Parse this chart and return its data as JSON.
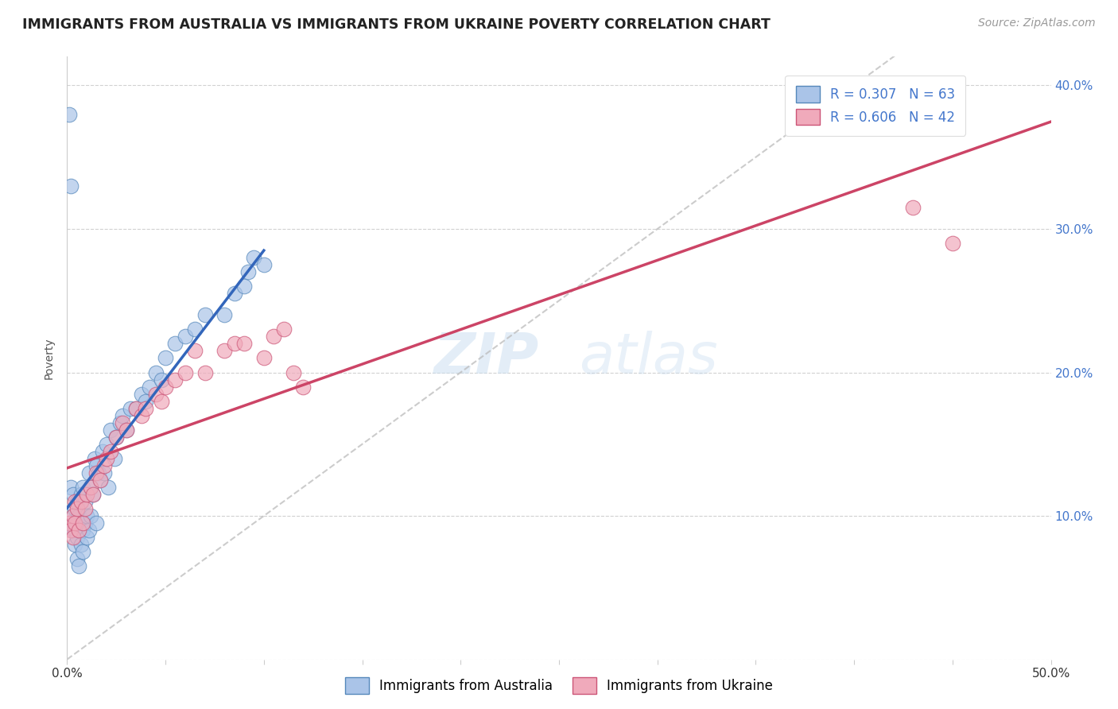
{
  "title": "IMMIGRANTS FROM AUSTRALIA VS IMMIGRANTS FROM UKRAINE POVERTY CORRELATION CHART",
  "source": "Source: ZipAtlas.com",
  "ylabel": "Poverty",
  "xlim": [
    0.0,
    0.5
  ],
  "ylim": [
    0.0,
    0.42
  ],
  "australia_color": "#aac4e8",
  "ukraine_color": "#f0aabb",
  "australia_edge": "#5588bb",
  "ukraine_edge": "#cc5577",
  "regression_australia_color": "#3366bb",
  "regression_ukraine_color": "#cc4466",
  "diagonal_color": "#bbbbbb",
  "R_australia": 0.307,
  "N_australia": 63,
  "R_ukraine": 0.606,
  "N_ukraine": 42,
  "legend_label_australia": "Immigrants from Australia",
  "legend_label_ukraine": "Immigrants from Ukraine",
  "watermark_zip": "ZIP",
  "watermark_atlas": "atlas",
  "background_color": "#ffffff",
  "grid_color": "#cccccc",
  "title_color": "#222222",
  "axis_tick_color": "#4477cc",
  "aus_x": [
    0.001,
    0.002,
    0.002,
    0.003,
    0.003,
    0.003,
    0.004,
    0.004,
    0.004,
    0.005,
    0.005,
    0.005,
    0.005,
    0.006,
    0.006,
    0.006,
    0.007,
    0.007,
    0.008,
    0.008,
    0.008,
    0.009,
    0.009,
    0.01,
    0.01,
    0.011,
    0.011,
    0.012,
    0.012,
    0.013,
    0.014,
    0.015,
    0.015,
    0.016,
    0.017,
    0.018,
    0.019,
    0.02,
    0.021,
    0.022,
    0.024,
    0.025,
    0.027,
    0.028,
    0.03,
    0.032,
    0.035,
    0.038,
    0.04,
    0.042,
    0.045,
    0.048,
    0.05,
    0.055,
    0.06,
    0.065,
    0.07,
    0.08,
    0.085,
    0.09,
    0.092,
    0.095,
    0.1
  ],
  "aus_y": [
    0.38,
    0.33,
    0.12,
    0.09,
    0.1,
    0.115,
    0.105,
    0.08,
    0.09,
    0.11,
    0.095,
    0.085,
    0.07,
    0.1,
    0.09,
    0.065,
    0.115,
    0.08,
    0.12,
    0.09,
    0.075,
    0.11,
    0.095,
    0.1,
    0.085,
    0.13,
    0.09,
    0.12,
    0.1,
    0.115,
    0.14,
    0.135,
    0.095,
    0.13,
    0.125,
    0.145,
    0.13,
    0.15,
    0.12,
    0.16,
    0.14,
    0.155,
    0.165,
    0.17,
    0.16,
    0.175,
    0.175,
    0.185,
    0.18,
    0.19,
    0.2,
    0.195,
    0.21,
    0.22,
    0.225,
    0.23,
    0.24,
    0.24,
    0.255,
    0.26,
    0.27,
    0.28,
    0.275
  ],
  "ukr_x": [
    0.001,
    0.002,
    0.003,
    0.003,
    0.004,
    0.004,
    0.005,
    0.006,
    0.007,
    0.008,
    0.009,
    0.01,
    0.012,
    0.013,
    0.015,
    0.017,
    0.019,
    0.02,
    0.022,
    0.025,
    0.028,
    0.03,
    0.035,
    0.038,
    0.04,
    0.045,
    0.048,
    0.05,
    0.055,
    0.06,
    0.065,
    0.07,
    0.08,
    0.085,
    0.09,
    0.1,
    0.105,
    0.11,
    0.115,
    0.12,
    0.43,
    0.45
  ],
  "ukr_y": [
    0.095,
    0.09,
    0.1,
    0.085,
    0.11,
    0.095,
    0.105,
    0.09,
    0.11,
    0.095,
    0.105,
    0.115,
    0.12,
    0.115,
    0.13,
    0.125,
    0.135,
    0.14,
    0.145,
    0.155,
    0.165,
    0.16,
    0.175,
    0.17,
    0.175,
    0.185,
    0.18,
    0.19,
    0.195,
    0.2,
    0.215,
    0.2,
    0.215,
    0.22,
    0.22,
    0.21,
    0.225,
    0.23,
    0.2,
    0.19,
    0.315,
    0.29
  ],
  "title_fontsize": 12.5,
  "ylabel_fontsize": 10,
  "tick_fontsize": 11,
  "legend_fontsize": 12,
  "source_fontsize": 10
}
